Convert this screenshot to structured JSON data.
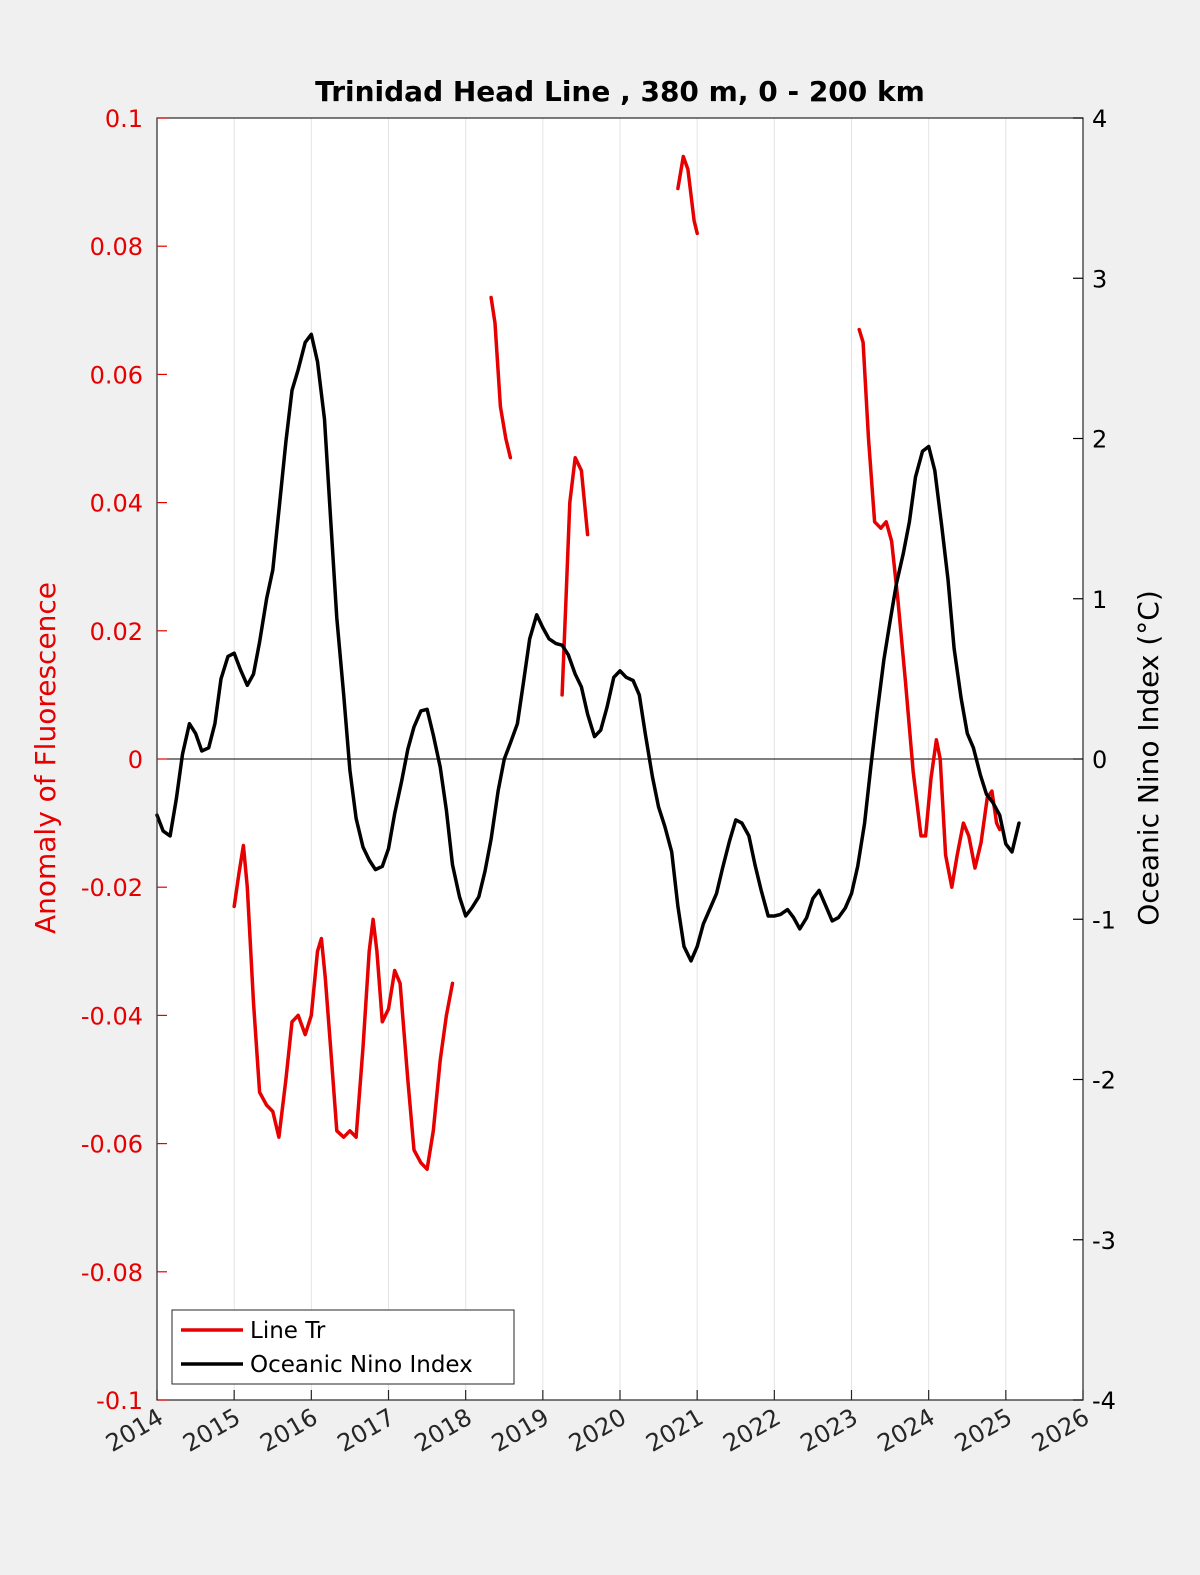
{
  "chart_data": {
    "type": "line",
    "title": "Trinidad Head Line , 380 m, 0 - 200 km",
    "xlabel": "",
    "ylabel_left": "Anomaly of Fluorescence",
    "ylabel_right": "Oceanic Nino Index (°C)",
    "xlim": [
      2014,
      2026
    ],
    "ylim_left": [
      -0.1,
      0.1
    ],
    "ylim_right": [
      -4,
      4
    ],
    "x_ticks": [
      "2014",
      "2015",
      "2016",
      "2017",
      "2018",
      "2019",
      "2020",
      "2021",
      "2022",
      "2023",
      "2024",
      "2025",
      "2026"
    ],
    "y_left_ticks": [
      "-0.1",
      "-0.08",
      "-0.06",
      "-0.04",
      "-0.02",
      "0",
      "0.02",
      "0.04",
      "0.06",
      "0.08",
      "0.1"
    ],
    "y_right_ticks": [
      "-4",
      "-3",
      "-2",
      "-1",
      "0",
      "1",
      "2",
      "3",
      "4"
    ],
    "grid": "vertical",
    "legend_position": "bottom-left",
    "colors": {
      "line_tr": "#e60000",
      "oni": "#000000",
      "left_axis": "#e60000",
      "right_axis": "#000000"
    },
    "series": [
      {
        "name": "Line Tr",
        "axis": "left",
        "segments": [
          [
            [
              2015.0,
              -0.023
            ],
            [
              2015.06,
              -0.018
            ],
            [
              2015.12,
              -0.0135
            ],
            [
              2015.17,
              -0.02
            ],
            [
              2015.25,
              -0.038
            ],
            [
              2015.33,
              -0.052
            ],
            [
              2015.42,
              -0.054
            ],
            [
              2015.5,
              -0.055
            ],
            [
              2015.58,
              -0.059
            ],
            [
              2015.67,
              -0.05
            ],
            [
              2015.75,
              -0.041
            ],
            [
              2015.83,
              -0.04
            ],
            [
              2015.92,
              -0.043
            ],
            [
              2016.0,
              -0.04
            ],
            [
              2016.08,
              -0.03
            ],
            [
              2016.13,
              -0.028
            ],
            [
              2016.18,
              -0.034
            ],
            [
              2016.25,
              -0.045
            ],
            [
              2016.33,
              -0.058
            ],
            [
              2016.42,
              -0.059
            ],
            [
              2016.5,
              -0.058
            ],
            [
              2016.58,
              -0.059
            ],
            [
              2016.67,
              -0.045
            ],
            [
              2016.75,
              -0.03
            ],
            [
              2016.8,
              -0.025
            ],
            [
              2016.85,
              -0.03
            ],
            [
              2016.92,
              -0.041
            ],
            [
              2017.0,
              -0.039
            ],
            [
              2017.08,
              -0.033
            ],
            [
              2017.15,
              -0.035
            ],
            [
              2017.25,
              -0.05
            ],
            [
              2017.33,
              -0.061
            ],
            [
              2017.42,
              -0.063
            ],
            [
              2017.5,
              -0.064
            ],
            [
              2017.58,
              -0.058
            ],
            [
              2017.67,
              -0.047
            ],
            [
              2017.75,
              -0.04
            ],
            [
              2017.83,
              -0.035
            ]
          ],
          [
            [
              2018.33,
              0.072
            ],
            [
              2018.38,
              0.068
            ],
            [
              2018.45,
              0.055
            ],
            [
              2018.52,
              0.05
            ],
            [
              2018.58,
              0.047
            ]
          ],
          [
            [
              2019.25,
              0.01
            ],
            [
              2019.3,
              0.025
            ],
            [
              2019.35,
              0.04
            ],
            [
              2019.42,
              0.047
            ],
            [
              2019.5,
              0.045
            ],
            [
              2019.58,
              0.035
            ]
          ],
          [
            [
              2020.75,
              0.089
            ],
            [
              2020.82,
              0.094
            ],
            [
              2020.88,
              0.092
            ],
            [
              2020.96,
              0.084
            ],
            [
              2021.0,
              0.082
            ]
          ],
          [
            [
              2023.1,
              0.067
            ],
            [
              2023.15,
              0.065
            ],
            [
              2023.22,
              0.05
            ],
            [
              2023.3,
              0.037
            ],
            [
              2023.38,
              0.036
            ],
            [
              2023.45,
              0.037
            ],
            [
              2023.52,
              0.034
            ],
            [
              2023.6,
              0.025
            ],
            [
              2023.7,
              0.012
            ],
            [
              2023.8,
              -0.002
            ],
            [
              2023.9,
              -0.012
            ],
            [
              2023.96,
              -0.012
            ],
            [
              2024.03,
              -0.003
            ],
            [
              2024.1,
              0.003
            ],
            [
              2024.15,
              0.0
            ],
            [
              2024.22,
              -0.015
            ],
            [
              2024.3,
              -0.02
            ],
            [
              2024.37,
              -0.015
            ],
            [
              2024.45,
              -0.01
            ],
            [
              2024.52,
              -0.012
            ],
            [
              2024.6,
              -0.017
            ],
            [
              2024.68,
              -0.013
            ],
            [
              2024.76,
              -0.006
            ],
            [
              2024.82,
              -0.005
            ],
            [
              2024.88,
              -0.01
            ],
            [
              2024.92,
              -0.011
            ]
          ]
        ]
      },
      {
        "name": "Oceanic Nino Index",
        "axis": "right",
        "segments": [
          [
            [
              2014.0,
              -0.35
            ],
            [
              2014.08,
              -0.45
            ],
            [
              2014.17,
              -0.48
            ],
            [
              2014.25,
              -0.25
            ],
            [
              2014.33,
              0.03
            ],
            [
              2014.42,
              0.22
            ],
            [
              2014.5,
              0.16
            ],
            [
              2014.58,
              0.05
            ],
            [
              2014.67,
              0.07
            ],
            [
              2014.75,
              0.22
            ],
            [
              2014.83,
              0.5
            ],
            [
              2014.92,
              0.64
            ],
            [
              2015.0,
              0.66
            ],
            [
              2015.08,
              0.56
            ],
            [
              2015.17,
              0.46
            ],
            [
              2015.25,
              0.53
            ],
            [
              2015.33,
              0.73
            ],
            [
              2015.42,
              1.0
            ],
            [
              2015.5,
              1.18
            ],
            [
              2015.58,
              1.55
            ],
            [
              2015.67,
              1.98
            ],
            [
              2015.75,
              2.3
            ],
            [
              2015.83,
              2.43
            ],
            [
              2015.92,
              2.6
            ],
            [
              2016.0,
              2.65
            ],
            [
              2016.08,
              2.48
            ],
            [
              2016.17,
              2.12
            ],
            [
              2016.25,
              1.5
            ],
            [
              2016.33,
              0.88
            ],
            [
              2016.42,
              0.4
            ],
            [
              2016.5,
              -0.07
            ],
            [
              2016.58,
              -0.37
            ],
            [
              2016.67,
              -0.55
            ],
            [
              2016.75,
              -0.63
            ],
            [
              2016.83,
              -0.69
            ],
            [
              2016.92,
              -0.67
            ],
            [
              2017.0,
              -0.56
            ],
            [
              2017.08,
              -0.34
            ],
            [
              2017.17,
              -0.14
            ],
            [
              2017.25,
              0.06
            ],
            [
              2017.33,
              0.2
            ],
            [
              2017.42,
              0.3
            ],
            [
              2017.5,
              0.31
            ],
            [
              2017.58,
              0.15
            ],
            [
              2017.67,
              -0.05
            ],
            [
              2017.75,
              -0.32
            ],
            [
              2017.83,
              -0.66
            ],
            [
              2017.92,
              -0.86
            ],
            [
              2018.0,
              -0.98
            ],
            [
              2018.08,
              -0.93
            ],
            [
              2018.17,
              -0.86
            ],
            [
              2018.25,
              -0.7
            ],
            [
              2018.33,
              -0.5
            ],
            [
              2018.42,
              -0.2
            ],
            [
              2018.5,
              0.0
            ],
            [
              2018.58,
              0.1
            ],
            [
              2018.67,
              0.22
            ],
            [
              2018.75,
              0.48
            ],
            [
              2018.83,
              0.75
            ],
            [
              2018.92,
              0.9
            ],
            [
              2019.0,
              0.82
            ],
            [
              2019.08,
              0.75
            ],
            [
              2019.17,
              0.72
            ],
            [
              2019.25,
              0.71
            ],
            [
              2019.33,
              0.65
            ],
            [
              2019.42,
              0.53
            ],
            [
              2019.5,
              0.45
            ],
            [
              2019.58,
              0.28
            ],
            [
              2019.67,
              0.14
            ],
            [
              2019.75,
              0.18
            ],
            [
              2019.83,
              0.32
            ],
            [
              2019.92,
              0.51
            ],
            [
              2020.0,
              0.55
            ],
            [
              2020.08,
              0.51
            ],
            [
              2020.17,
              0.49
            ],
            [
              2020.25,
              0.4
            ],
            [
              2020.33,
              0.15
            ],
            [
              2020.42,
              -0.11
            ],
            [
              2020.5,
              -0.3
            ],
            [
              2020.58,
              -0.42
            ],
            [
              2020.67,
              -0.58
            ],
            [
              2020.75,
              -0.92
            ],
            [
              2020.83,
              -1.17
            ],
            [
              2020.92,
              -1.26
            ],
            [
              2021.0,
              -1.17
            ],
            [
              2021.08,
              -1.03
            ],
            [
              2021.17,
              -0.93
            ],
            [
              2021.25,
              -0.84
            ],
            [
              2021.33,
              -0.68
            ],
            [
              2021.42,
              -0.51
            ],
            [
              2021.5,
              -0.38
            ],
            [
              2021.58,
              -0.4
            ],
            [
              2021.67,
              -0.48
            ],
            [
              2021.75,
              -0.66
            ],
            [
              2021.83,
              -0.82
            ],
            [
              2021.92,
              -0.98
            ],
            [
              2022.0,
              -0.98
            ],
            [
              2022.08,
              -0.97
            ],
            [
              2022.17,
              -0.94
            ],
            [
              2022.25,
              -0.99
            ],
            [
              2022.33,
              -1.06
            ],
            [
              2022.42,
              -0.99
            ],
            [
              2022.5,
              -0.87
            ],
            [
              2022.58,
              -0.82
            ],
            [
              2022.67,
              -0.92
            ],
            [
              2022.75,
              -1.01
            ],
            [
              2022.83,
              -0.99
            ],
            [
              2022.92,
              -0.93
            ],
            [
              2023.0,
              -0.84
            ],
            [
              2023.08,
              -0.67
            ],
            [
              2023.17,
              -0.4
            ],
            [
              2023.25,
              -0.05
            ],
            [
              2023.33,
              0.28
            ],
            [
              2023.42,
              0.62
            ],
            [
              2023.5,
              0.86
            ],
            [
              2023.58,
              1.09
            ],
            [
              2023.67,
              1.28
            ],
            [
              2023.75,
              1.48
            ],
            [
              2023.83,
              1.76
            ],
            [
              2023.92,
              1.92
            ],
            [
              2024.0,
              1.95
            ],
            [
              2024.08,
              1.8
            ],
            [
              2024.17,
              1.45
            ],
            [
              2024.25,
              1.12
            ],
            [
              2024.33,
              0.69
            ],
            [
              2024.42,
              0.38
            ],
            [
              2024.5,
              0.16
            ],
            [
              2024.58,
              0.07
            ],
            [
              2024.67,
              -0.1
            ],
            [
              2024.75,
              -0.22
            ],
            [
              2024.83,
              -0.27
            ],
            [
              2024.92,
              -0.35
            ],
            [
              2025.0,
              -0.53
            ],
            [
              2025.08,
              -0.58
            ],
            [
              2025.17,
              -0.4
            ]
          ]
        ]
      }
    ]
  }
}
